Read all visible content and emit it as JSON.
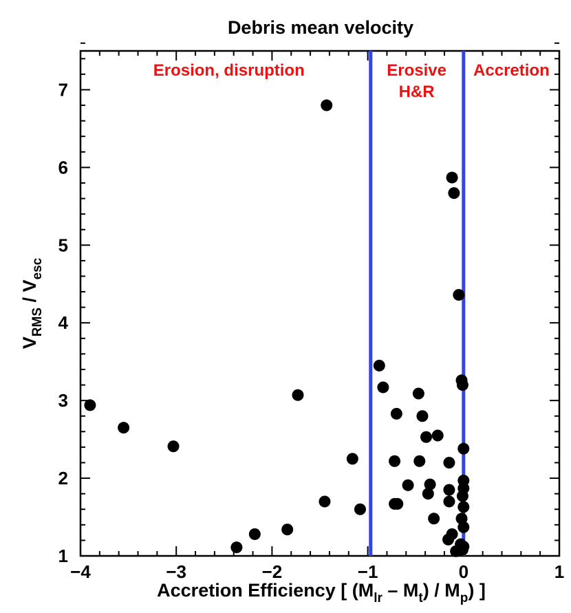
{
  "chart_data": {
    "type": "scatter",
    "title": "Debris mean velocity",
    "xlabel": {
      "prefix": "Accretion Efficiency [ (M",
      "sub1": "lr",
      "mid1": " – M",
      "sub2": "t",
      "mid2": ") / M",
      "sub3": "p",
      "suffix": ") ]"
    },
    "ylabel": {
      "v1": "V",
      "sub1": "RMS",
      "mid": " / V",
      "sub2": "esc"
    },
    "xlim": [
      -4,
      1
    ],
    "ylim": [
      1,
      7.5
    ],
    "xticks": [
      -4,
      -3,
      -2,
      -1,
      0,
      1
    ],
    "xtick_labels": [
      "−4",
      "−3",
      "−2",
      "−1",
      "0",
      "1"
    ],
    "yticks": [
      1,
      2,
      3,
      4,
      5,
      6,
      7
    ],
    "ytick_labels": [
      "1",
      "2",
      "3",
      "4",
      "5",
      "6",
      "7"
    ],
    "vlines": [
      -0.97,
      0.0
    ],
    "regions": [
      {
        "lines": [
          "Erosion, disruption"
        ],
        "x": -2.45,
        "y": 7.25
      },
      {
        "lines": [
          "Erosive",
          "H&R"
        ],
        "x": -0.49,
        "y": 7.25
      },
      {
        "lines": [
          "Accretion"
        ],
        "x": 0.5,
        "y": 7.25
      }
    ],
    "points": [
      {
        "x": -3.9,
        "y": 2.94
      },
      {
        "x": -3.55,
        "y": 2.65
      },
      {
        "x": -3.03,
        "y": 2.41
      },
      {
        "x": -2.37,
        "y": 1.11
      },
      {
        "x": -2.18,
        "y": 1.28
      },
      {
        "x": -1.84,
        "y": 1.34
      },
      {
        "x": -1.73,
        "y": 3.07
      },
      {
        "x": -1.45,
        "y": 1.7
      },
      {
        "x": -1.43,
        "y": 6.8
      },
      {
        "x": -1.16,
        "y": 2.25
      },
      {
        "x": -1.08,
        "y": 1.6
      },
      {
        "x": -0.88,
        "y": 3.45
      },
      {
        "x": -0.84,
        "y": 3.17
      },
      {
        "x": -0.72,
        "y": 2.22
      },
      {
        "x": -0.72,
        "y": 1.67
      },
      {
        "x": -0.7,
        "y": 2.83
      },
      {
        "x": -0.69,
        "y": 1.67
      },
      {
        "x": -0.58,
        "y": 1.91
      },
      {
        "x": -0.47,
        "y": 3.09
      },
      {
        "x": -0.46,
        "y": 2.22
      },
      {
        "x": -0.43,
        "y": 2.8
      },
      {
        "x": -0.39,
        "y": 2.53
      },
      {
        "x": -0.37,
        "y": 1.8
      },
      {
        "x": -0.35,
        "y": 1.92
      },
      {
        "x": -0.31,
        "y": 1.48
      },
      {
        "x": -0.27,
        "y": 2.55
      },
      {
        "x": -0.16,
        "y": 1.21
      },
      {
        "x": -0.15,
        "y": 1.7
      },
      {
        "x": -0.15,
        "y": 1.85
      },
      {
        "x": -0.15,
        "y": 2.2
      },
      {
        "x": -0.12,
        "y": 1.28
      },
      {
        "x": -0.12,
        "y": 5.87
      },
      {
        "x": -0.1,
        "y": 5.67
      },
      {
        "x": -0.08,
        "y": 1.06
      },
      {
        "x": -0.05,
        "y": 4.36
      },
      {
        "x": -0.03,
        "y": 1.15
      },
      {
        "x": -0.02,
        "y": 1.48
      },
      {
        "x": -0.02,
        "y": 3.26
      },
      {
        "x": -0.01,
        "y": 3.2
      },
      {
        "x": -0.01,
        "y": 1.77
      },
      {
        "x": -0.01,
        "y": 1.08
      },
      {
        "x": 0.0,
        "y": 1.12
      },
      {
        "x": 0.0,
        "y": 1.63
      },
      {
        "x": 0.0,
        "y": 1.87
      },
      {
        "x": 0.0,
        "y": 1.97
      },
      {
        "x": 0.0,
        "y": 2.38
      },
      {
        "x": 0.0,
        "y": 1.37
      }
    ]
  }
}
